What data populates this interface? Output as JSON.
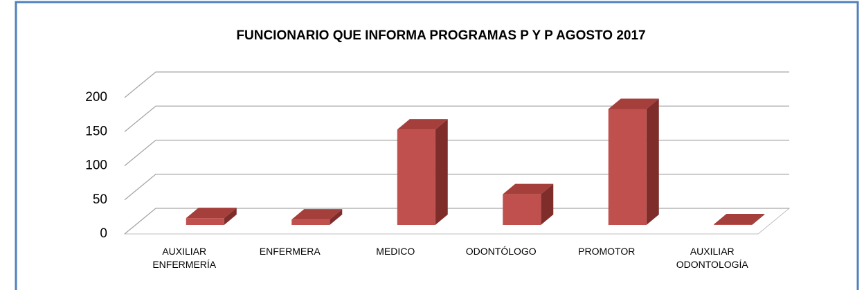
{
  "chart_data": {
    "type": "bar3d",
    "title": "FUNCIONARIO QUE INFORMA PROGRAMAS P Y P AGOSTO 2017",
    "categories": [
      "AUXILIAR ENFERMERÍA",
      "ENFERMERA",
      "MEDICO",
      "ODONTÓLOGO",
      "PROMOTOR",
      "AUXILIAR ODONTOLOGÍA"
    ],
    "values": [
      10,
      8,
      140,
      45,
      170,
      1
    ],
    "color": "#c0504d",
    "ylim": [
      0,
      200
    ],
    "yticks": [
      0,
      50,
      100,
      150,
      200
    ],
    "grid": true
  }
}
